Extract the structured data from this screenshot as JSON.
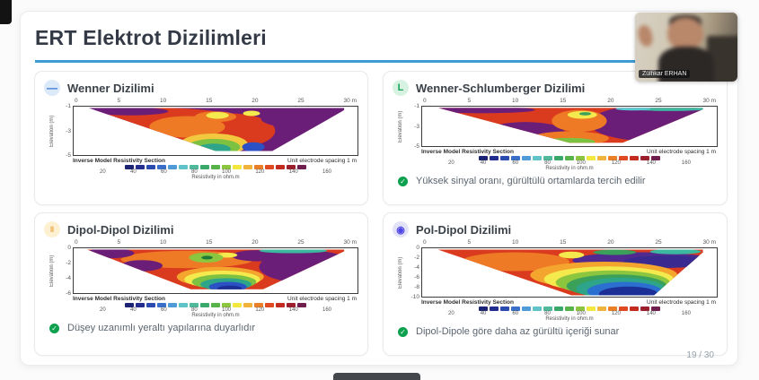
{
  "page": {
    "indicator": "19 / 30"
  },
  "webcam": {
    "name_label": "Zülfikar ERHAN"
  },
  "slide": {
    "title": "ERT Elektrot Dizilimleri",
    "accent_color": "#3d9bd5"
  },
  "icons": {
    "check": "✓"
  },
  "section_footer": {
    "left": "Inverse Model Resistivity Section",
    "right": "Unit electrode spacing 1 m"
  },
  "colorbar": {
    "colors": [
      "#1c2274",
      "#232d8e",
      "#2b4bb0",
      "#3a6fc9",
      "#4f9bd8",
      "#5fc3c9",
      "#4fb99b",
      "#3aa86a",
      "#57b24a",
      "#8cc63f",
      "#f2e83e",
      "#f0b43c",
      "#ea7f28",
      "#e04a23",
      "#c42b20",
      "#9c1f2e",
      "#6f1f4e"
    ],
    "tick_labels": [
      "20",
      "40",
      "60",
      "80",
      "100",
      "120",
      "140",
      "160"
    ],
    "caption": "Resistivity in ohm.m"
  },
  "panels": [
    {
      "title": "Wenner Dizilimi",
      "icon_glyph": "—",
      "x_ticks": [
        "0",
        "5",
        "10",
        "15",
        "20",
        "25",
        "30 m"
      ],
      "y_label": "Elevation (m)",
      "y_ticks": [
        "-1",
        "-3",
        "-5"
      ],
      "caption": ""
    },
    {
      "title": "Wenner-Schlumberger Dizilimi",
      "icon_glyph": "L",
      "x_ticks": [
        "0",
        "5",
        "10",
        "15",
        "20",
        "25",
        "30 m"
      ],
      "y_label": "Elevation (m)",
      "y_ticks": [
        "-1",
        "-3",
        "-5"
      ],
      "caption": "Yüksek sinyal oranı, gürültülü ortamlarda tercih edilir"
    },
    {
      "title": "Dipol-Dipol Dizilimi",
      "icon_glyph": "‖",
      "x_ticks": [
        "0",
        "5",
        "10",
        "15",
        "20",
        "25",
        "30 m"
      ],
      "y_label": "Elevation (m)",
      "y_ticks": [
        "0",
        "-2",
        "-4",
        "-6"
      ],
      "caption": "Düşey uzanımlı yeraltı yapılarına duyarlıdır"
    },
    {
      "title": "Pol-Dipol Dizilimi",
      "icon_glyph": "◉",
      "x_ticks": [
        "0",
        "5",
        "10",
        "15",
        "20",
        "25",
        "30 m"
      ],
      "y_label": "Elevation (m)",
      "y_ticks": [
        "0",
        "-2",
        "-4",
        "-6",
        "-8",
        "-10"
      ],
      "caption": "Dipol-Dipole göre daha az gürültü içeriği sunar"
    }
  ]
}
